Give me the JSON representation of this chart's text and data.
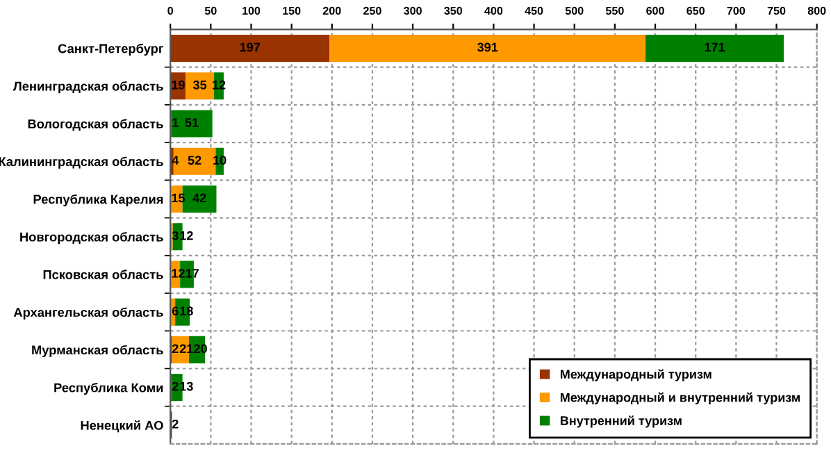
{
  "chart_data": {
    "type": "bar",
    "orientation": "horizontal",
    "stacked": true,
    "categories": [
      "Санкт-Петербург",
      "Ленинградская область",
      "Вологодская область",
      "Калининградская область",
      "Республика Карелия",
      "Новгородская область",
      "Псковская область",
      "Архангельская область",
      "Мурманская область",
      "Республика Коми",
      "Ненецкий АО"
    ],
    "series": [
      {
        "name": "Международный туризм",
        "color": "#993300",
        "values": [
          197,
          19,
          1,
          4,
          null,
          null,
          null,
          null,
          2,
          2,
          null
        ]
      },
      {
        "name": "Международный и внутренний туризм",
        "color": "#ff9900",
        "values": [
          391,
          35,
          null,
          52,
          15,
          3,
          12,
          6,
          21,
          null,
          null
        ]
      },
      {
        "name": "Внутренний туризм",
        "color": "#008000",
        "values": [
          171,
          12,
          51,
          10,
          42,
          12,
          17,
          18,
          20,
          13,
          2
        ]
      }
    ],
    "xlim": [
      0,
      800
    ],
    "xticks": [
      0,
      50,
      100,
      150,
      200,
      250,
      300,
      350,
      400,
      450,
      500,
      550,
      600,
      650,
      700,
      750,
      800
    ],
    "data_labels": true,
    "grid": true,
    "legend": "bottom right"
  }
}
